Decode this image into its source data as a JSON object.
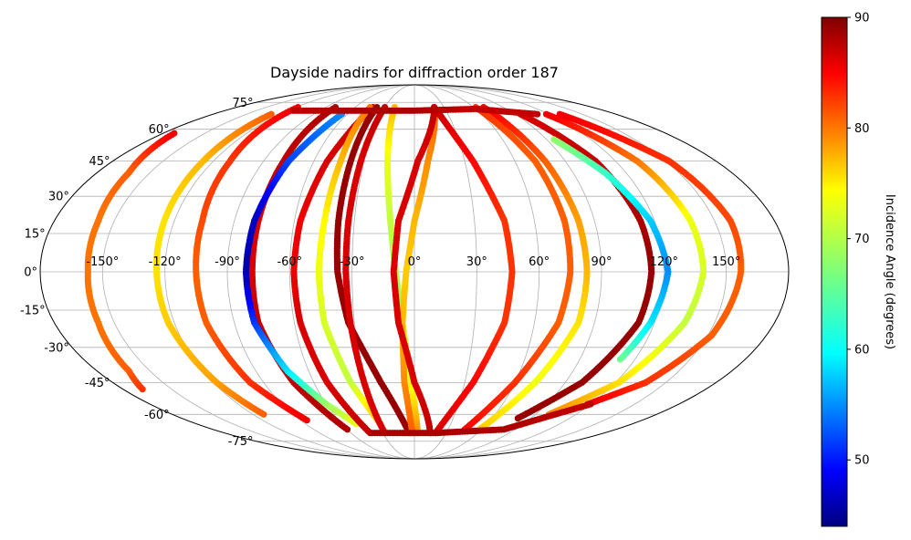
{
  "chart_data": {
    "type": "scatter",
    "projection": "mollweide",
    "title": "Dayside nadirs for diffraction order 187",
    "lon_ticks": [
      "-150°",
      "-120°",
      "-90°",
      "-60°",
      "-30°",
      "0°",
      "30°",
      "60°",
      "90°",
      "120°",
      "150°"
    ],
    "lon_tick_values": [
      -150,
      -120,
      -90,
      -60,
      -30,
      0,
      30,
      60,
      90,
      120,
      150
    ],
    "lat_ticks": [
      "75°",
      "60°",
      "45°",
      "30°",
      "15°",
      "0°",
      "-15°",
      "-30°",
      "-45°",
      "-60°",
      "-75°"
    ],
    "lat_tick_values": [
      75,
      60,
      45,
      30,
      15,
      0,
      -15,
      -30,
      -45,
      -60,
      -75
    ],
    "grid": true,
    "colorbar": {
      "label": "Incidence Angle (degrees)",
      "colormap": "jet",
      "range": [
        44,
        90
      ],
      "ticks": [
        "50",
        "60",
        "70",
        "80",
        "90"
      ],
      "tick_values": [
        50,
        60,
        70,
        80,
        90
      ]
    },
    "series": [
      {
        "values": [
          [
            -172,
            58,
            85
          ],
          [
            -162,
            40,
            80
          ],
          [
            -158,
            20,
            79
          ],
          [
            -157,
            0,
            79
          ],
          [
            -158,
            -20,
            79
          ],
          [
            -162,
            -40,
            80
          ],
          [
            -168,
            -48,
            82
          ]
        ]
      },
      {
        "values": [
          [
            -128,
            68,
            80
          ],
          [
            -126,
            45,
            76
          ],
          [
            -125,
            20,
            74
          ],
          [
            -124,
            0,
            74
          ],
          [
            -123,
            -20,
            75
          ],
          [
            -118,
            -45,
            77
          ],
          [
            -112,
            -60,
            80
          ]
        ]
      },
      {
        "values": [
          [
            -118,
            72,
            85
          ],
          [
            -110,
            45,
            82
          ],
          [
            -106,
            20,
            81
          ],
          [
            -105,
            0,
            80
          ],
          [
            -104,
            -20,
            80
          ],
          [
            -98,
            -45,
            82
          ],
          [
            -85,
            -63,
            85
          ]
        ]
      },
      {
        "values": [
          [
            -80,
            72,
            88
          ],
          [
            -78,
            45,
            87
          ],
          [
            -78,
            20,
            86
          ],
          [
            -78,
            0,
            86
          ],
          [
            -78,
            -20,
            87
          ],
          [
            -72,
            -45,
            87
          ],
          [
            -60,
            -68,
            88
          ]
        ]
      },
      {
        "values": [
          [
            -65,
            68,
            56
          ],
          [
            -75,
            45,
            53
          ],
          [
            -80,
            20,
            47
          ],
          [
            -81,
            0,
            46
          ],
          [
            -80,
            -20,
            52
          ],
          [
            -72,
            -40,
            60
          ],
          [
            -60,
            -55,
            68
          ],
          [
            -48,
            -65,
            72
          ]
        ]
      },
      {
        "values": [
          [
            -42,
            72,
            87
          ],
          [
            -52,
            45,
            86
          ],
          [
            -57,
            20,
            85
          ],
          [
            -58,
            0,
            85
          ],
          [
            -57,
            -20,
            86
          ],
          [
            -52,
            -45,
            86
          ],
          [
            -42,
            -70,
            87
          ]
        ]
      },
      {
        "values": [
          [
            -45,
            72,
            79
          ],
          [
            -44,
            45,
            76
          ],
          [
            -45,
            20,
            73
          ],
          [
            -46,
            0,
            72
          ],
          [
            -45,
            -20,
            71
          ],
          [
            -38,
            -45,
            70
          ],
          [
            -28,
            -65,
            76
          ]
        ]
      },
      {
        "values": [
          [
            -38,
            72,
            89
          ],
          [
            -38,
            45,
            89
          ],
          [
            -38,
            20,
            89
          ],
          [
            -37,
            0,
            89
          ],
          [
            -33,
            -20,
            89
          ],
          [
            -20,
            -45,
            89
          ],
          [
            -5,
            -70,
            89
          ]
        ]
      },
      {
        "values": [
          [
            -30,
            72,
            87
          ],
          [
            -32,
            45,
            86
          ],
          [
            -33,
            20,
            86
          ],
          [
            -33,
            0,
            86
          ],
          [
            -32,
            -20,
            86
          ],
          [
            -30,
            -45,
            86
          ],
          [
            -28,
            -70,
            86
          ]
        ]
      },
      {
        "values": [
          [
            -20,
            72,
            76
          ],
          [
            -16,
            45,
            72
          ],
          [
            -12,
            20,
            70
          ],
          [
            -9,
            0,
            69
          ],
          [
            -6,
            -20,
            69
          ],
          [
            -2,
            -45,
            72
          ],
          [
            3,
            -70,
            78
          ]
        ]
      },
      {
        "values": [
          [
            20,
            72,
            80
          ],
          [
            8,
            45,
            78
          ],
          [
            0,
            20,
            76
          ],
          [
            -4,
            0,
            75
          ],
          [
            -6,
            -20,
            76
          ],
          [
            -6,
            -45,
            78
          ],
          [
            -2,
            -70,
            80
          ]
        ]
      },
      {
        "values": [
          [
            20,
            72,
            87
          ],
          [
            35,
            45,
            84
          ],
          [
            45,
            20,
            82
          ],
          [
            47,
            0,
            82
          ],
          [
            45,
            -20,
            82
          ],
          [
            35,
            -45,
            84
          ],
          [
            20,
            -70,
            86
          ]
        ]
      },
      {
        "values": [
          [
            20,
            72,
            87
          ],
          [
            2,
            45,
            86
          ],
          [
            -8,
            20,
            86
          ],
          [
            -10,
            0,
            86
          ],
          [
            -8,
            -20,
            86
          ],
          [
            0,
            -45,
            86
          ],
          [
            15,
            -70,
            87
          ]
        ]
      },
      {
        "values": [
          [
            70,
            72,
            85
          ],
          [
            78,
            45,
            80
          ],
          [
            82,
            20,
            77
          ],
          [
            83,
            0,
            76
          ],
          [
            82,
            -20,
            74
          ],
          [
            72,
            -45,
            72
          ],
          [
            58,
            -68,
            75
          ]
        ]
      },
      {
        "values": [
          [
            62,
            72,
            82
          ],
          [
            72,
            45,
            80
          ],
          [
            75,
            20,
            80
          ],
          [
            75,
            0,
            80
          ],
          [
            72,
            -20,
            80
          ],
          [
            60,
            -45,
            82
          ],
          [
            45,
            -68,
            84
          ]
        ]
      },
      {
        "values": [
          [
            95,
            68,
            86
          ],
          [
            108,
            45,
            87
          ],
          [
            113,
            20,
            88
          ],
          [
            114,
            0,
            89
          ],
          [
            112,
            -20,
            89
          ],
          [
            100,
            -45,
            89
          ],
          [
            80,
            -62,
            89
          ]
        ]
      },
      {
        "values": [
          [
            95,
            55,
            68
          ],
          [
            108,
            40,
            64
          ],
          [
            118,
            20,
            59
          ],
          [
            122,
            0,
            56
          ],
          [
            118,
            -20,
            60
          ],
          [
            112,
            -35,
            66
          ]
        ]
      },
      {
        "values": [
          [
            118,
            68,
            85
          ],
          [
            133,
            45,
            79
          ],
          [
            138,
            20,
            72
          ],
          [
            139,
            0,
            71
          ],
          [
            135,
            -20,
            70
          ],
          [
            122,
            -45,
            74
          ],
          [
            100,
            -60,
            78
          ]
        ]
      },
      {
        "values": [
          [
            130,
            68,
            85
          ],
          [
            152,
            45,
            82
          ],
          [
            158,
            20,
            81
          ],
          [
            157,
            0,
            80
          ],
          [
            152,
            -25,
            80
          ],
          [
            138,
            -45,
            82
          ],
          [
            118,
            -55,
            85
          ]
        ]
      },
      {
        "values": [
          [
            -115,
            70,
            87
          ],
          [
            -60,
            70,
            88
          ],
          [
            0,
            70,
            88
          ],
          [
            60,
            71,
            87
          ],
          [
            110,
            68,
            87
          ]
        ]
      },
      {
        "values": [
          [
            -40,
            -70,
            88
          ],
          [
            20,
            -70,
            88
          ],
          [
            80,
            -68,
            88
          ],
          [
            120,
            -55,
            87
          ]
        ]
      }
    ]
  }
}
